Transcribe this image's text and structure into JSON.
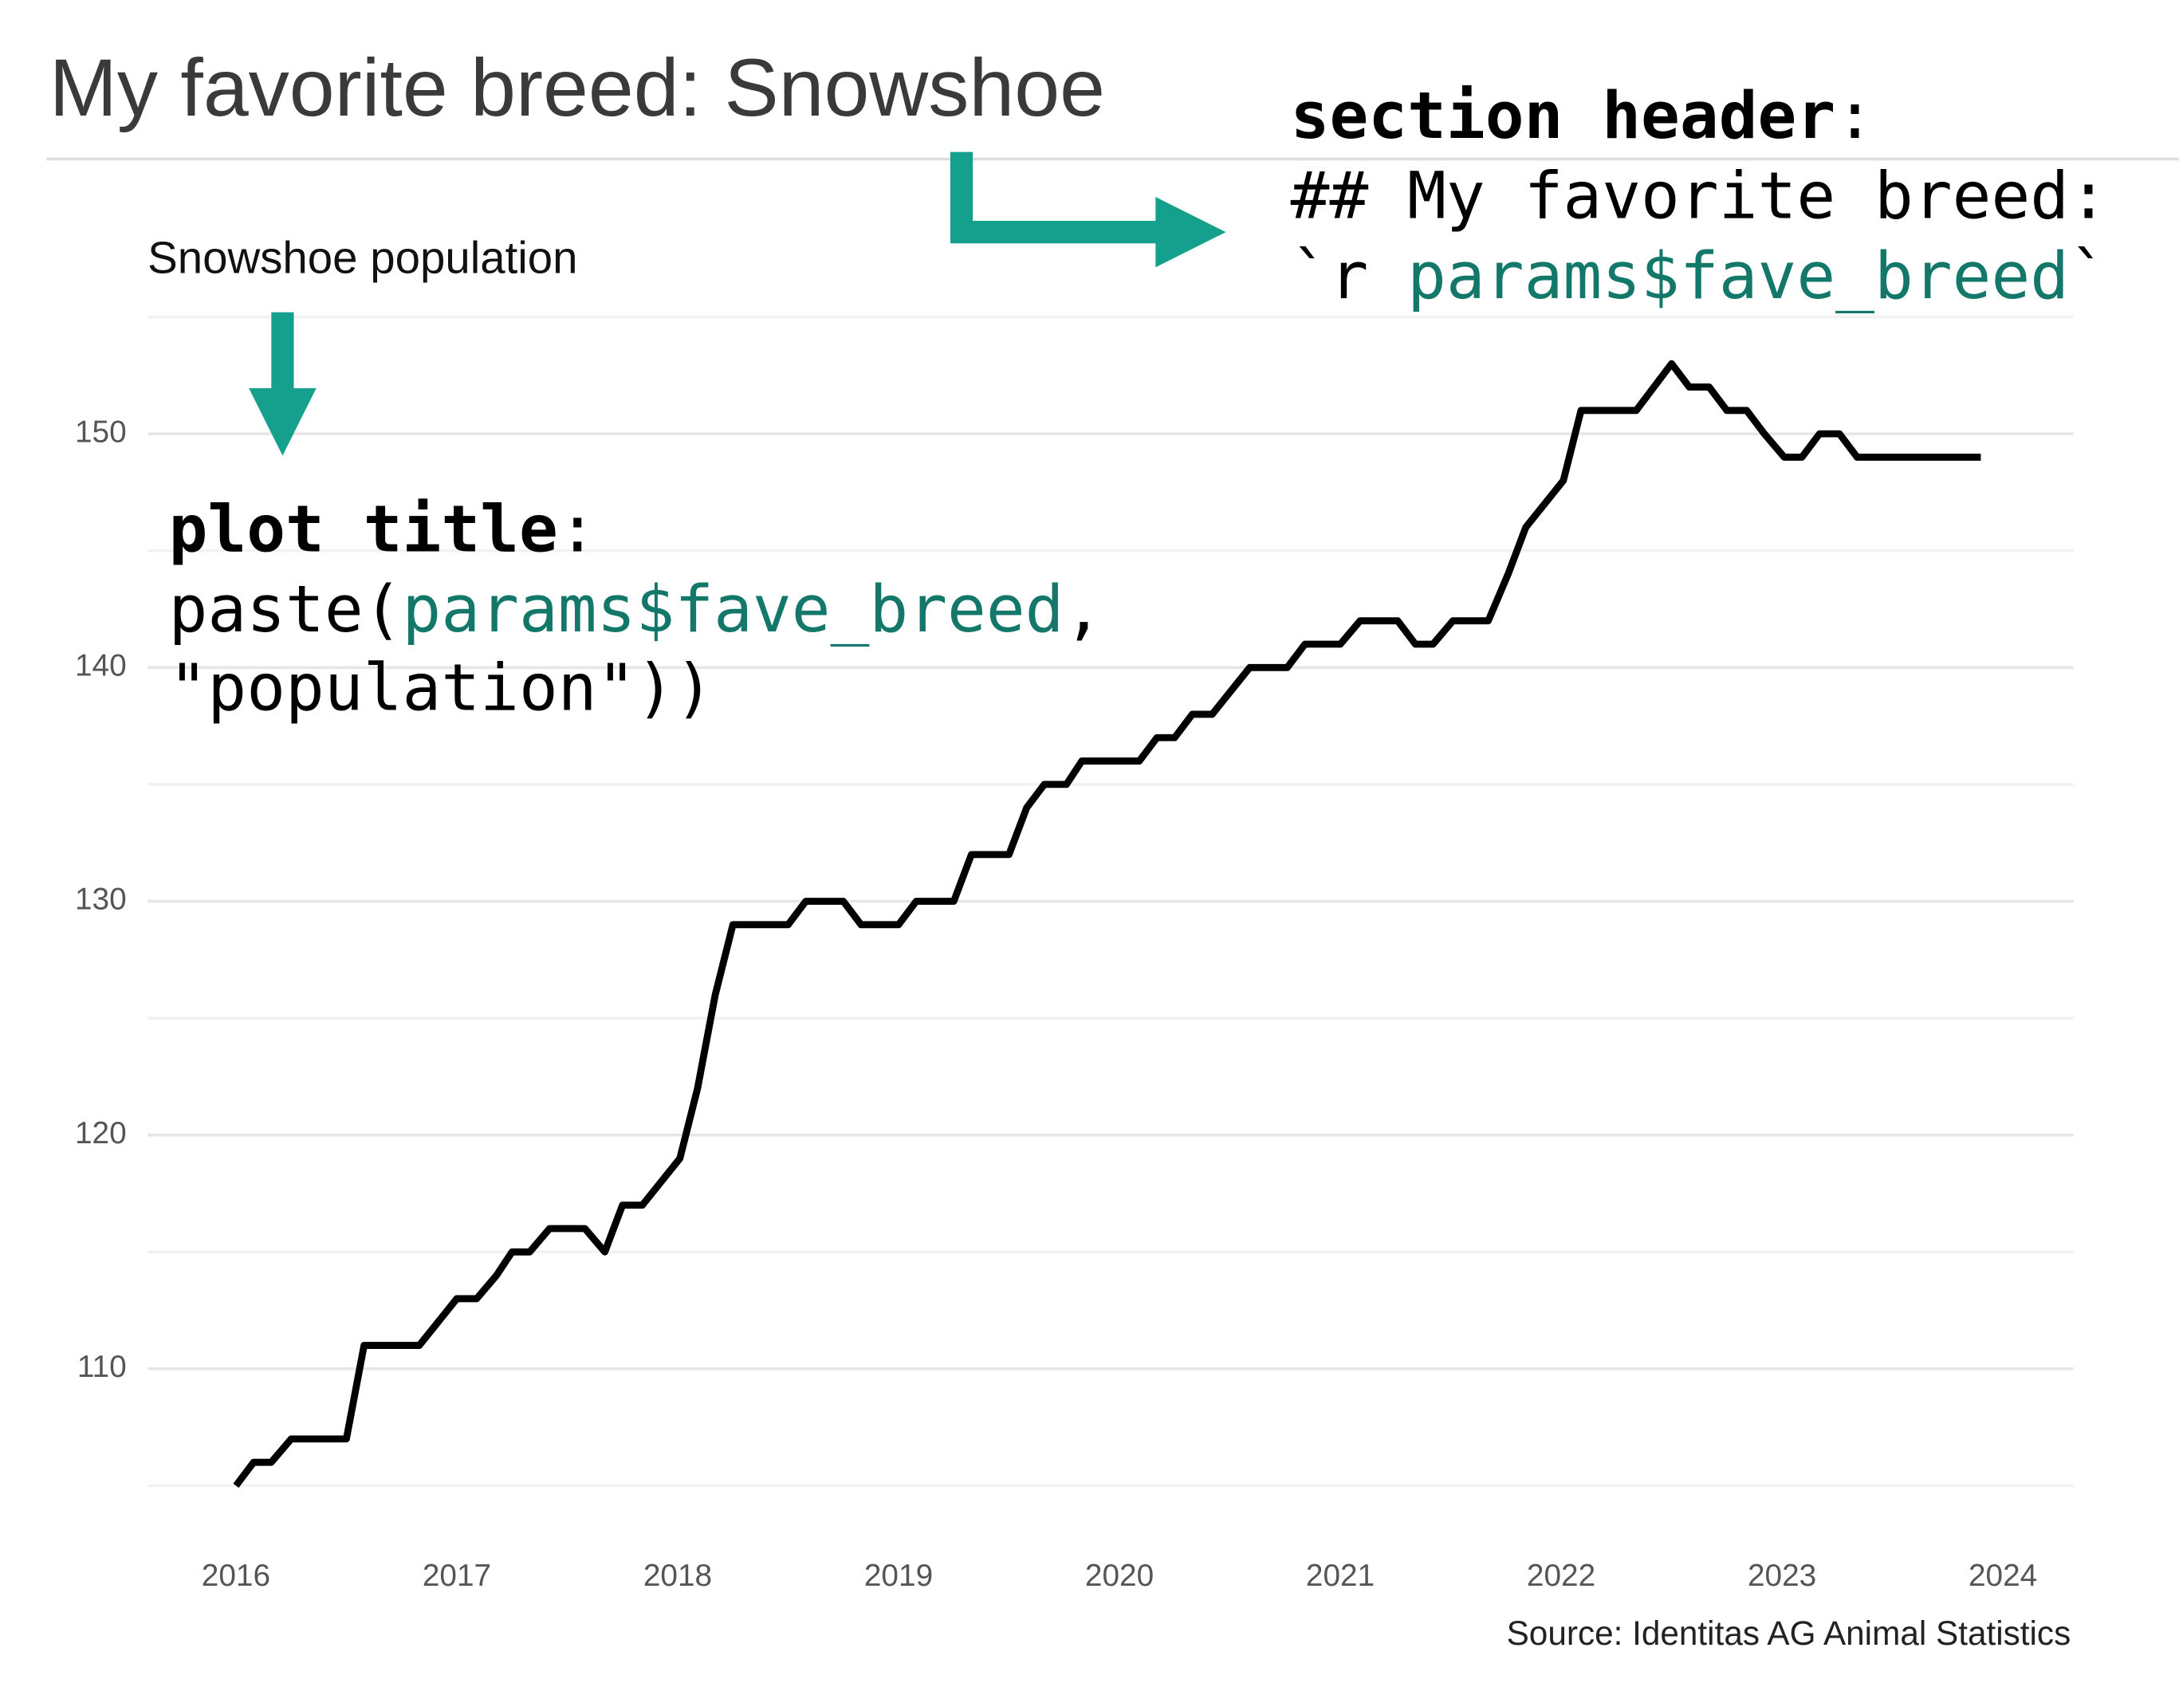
{
  "page_title": "My favorite breed: Snowshoe",
  "chart_data": {
    "type": "line",
    "title": "Snowshoe population",
    "caption": "Source: Identitas AG Animal Statistics",
    "color": "#000000",
    "x": [
      2016.0,
      2016.08,
      2016.16,
      2016.25,
      2016.5,
      2016.58,
      2016.83,
      2017.0,
      2017.09,
      2017.18,
      2017.25,
      2017.33,
      2017.42,
      2017.58,
      2017.67,
      2017.75,
      2017.84,
      2018.01,
      2018.09,
      2018.17,
      2018.25,
      2018.5,
      2018.58,
      2018.75,
      2018.83,
      2019.0,
      2019.08,
      2019.25,
      2019.33,
      2019.5,
      2019.58,
      2019.66,
      2019.76,
      2019.83,
      2020.09,
      2020.17,
      2020.25,
      2020.33,
      2020.42,
      2020.59,
      2020.76,
      2020.84,
      2021.0,
      2021.09,
      2021.26,
      2021.34,
      2021.42,
      2021.51,
      2021.67,
      2021.76,
      2021.84,
      2022.01,
      2022.09,
      2022.34,
      2022.5,
      2022.58,
      2022.67,
      2022.75,
      2022.84,
      2022.92,
      2023.01,
      2023.09,
      2023.17,
      2023.26,
      2023.34,
      2023.9
    ],
    "values": [
      105,
      106,
      106,
      107,
      107,
      111,
      111,
      113,
      113,
      114,
      115,
      115,
      116,
      116,
      115,
      117,
      117,
      119,
      122,
      126,
      129,
      129,
      130,
      130,
      129,
      129,
      130,
      130,
      132,
      132,
      134,
      135,
      135,
      136,
      136,
      137,
      137,
      138,
      138,
      140,
      140,
      141,
      141,
      142,
      142,
      141,
      141,
      142,
      142,
      144,
      146,
      148,
      151,
      151,
      153,
      152,
      152,
      151,
      151,
      150,
      149,
      149,
      150,
      150,
      149,
      149
    ],
    "xlim": [
      2015.6,
      2024.32
    ],
    "xticks": [
      2016,
      2017,
      2018,
      2019,
      2020,
      2021,
      2022,
      2023,
      2024
    ],
    "ylim": [
      103,
      155.2
    ],
    "yticks": [
      110,
      120,
      130,
      140,
      150
    ],
    "minor_grid": [
      105,
      115,
      125,
      135,
      145,
      155
    ],
    "grid": true
  },
  "annotations": {
    "section_header": {
      "label": "section header",
      "colon": ":",
      "line1": "## My favorite breed:",
      "line2_start": "`r ",
      "line2_param": "params$fave_breed",
      "line2_end": "`"
    },
    "plot_title": {
      "label": "plot title",
      "colon": ":",
      "line1_start": "paste(",
      "line1_param": "params$fave_breed",
      "line1_end": ",",
      "line2": "\"population\"))"
    }
  }
}
